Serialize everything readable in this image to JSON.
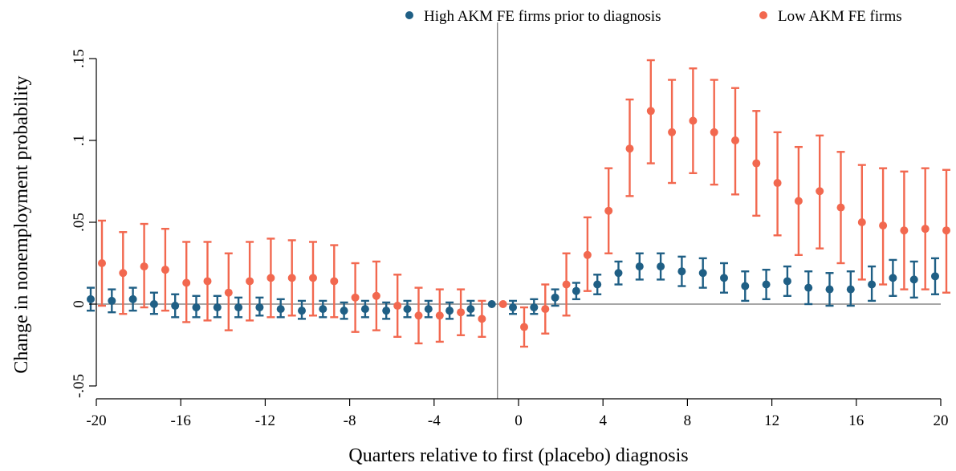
{
  "chart_data": {
    "type": "scatter",
    "subtype": "event-study-with-ci",
    "title": "",
    "xlabel": "Quarters relative to first (placebo) diagnosis",
    "ylabel": "Change in nonemployment probability",
    "xlim": [
      -20,
      20
    ],
    "ylim": [
      -0.05,
      0.15
    ],
    "xticks": [
      -20,
      -16,
      -12,
      -8,
      -4,
      0,
      4,
      8,
      12,
      16,
      20
    ],
    "xtick_labels": [
      "-20",
      "-16",
      "-12",
      "-8",
      "-4",
      "0",
      "4",
      "8",
      "12",
      "16",
      "20"
    ],
    "yticks": [
      -0.05,
      0,
      0.05,
      0.1,
      0.15
    ],
    "ytick_labels": [
      "-.05",
      "0",
      ".05",
      ".1",
      ".15"
    ],
    "grid": false,
    "reference_lines": {
      "y": 0,
      "x": -1
    },
    "legend_position": "top-right",
    "series": [
      {
        "name": "High AKM FE firms prior to diagnosis",
        "color": "#1f5f85",
        "x": [
          -20,
          -19,
          -18,
          -17,
          -16,
          -15,
          -14,
          -13,
          -12,
          -11,
          -10,
          -9,
          -8,
          -7,
          -6,
          -5,
          -4,
          -3,
          -2,
          -1,
          0,
          1,
          2,
          3,
          4,
          5,
          6,
          7,
          8,
          9,
          10,
          11,
          12,
          13,
          14,
          15,
          16,
          17,
          18,
          19,
          20
        ],
        "y": [
          0.003,
          0.002,
          0.003,
          0.0,
          -0.001,
          -0.002,
          -0.002,
          -0.002,
          -0.002,
          -0.003,
          -0.004,
          -0.003,
          -0.004,
          -0.003,
          -0.004,
          -0.003,
          -0.003,
          -0.004,
          -0.003,
          0.0,
          -0.002,
          -0.002,
          0.004,
          0.008,
          0.012,
          0.019,
          0.023,
          0.023,
          0.02,
          0.019,
          0.016,
          0.011,
          0.012,
          0.014,
          0.01,
          0.009,
          0.009,
          0.012,
          0.016,
          0.015,
          0.017
        ],
        "ci_low": [
          -0.004,
          -0.005,
          -0.004,
          -0.006,
          -0.008,
          -0.008,
          -0.008,
          -0.008,
          -0.007,
          -0.008,
          -0.009,
          -0.008,
          -0.009,
          -0.008,
          -0.009,
          -0.008,
          -0.008,
          -0.009,
          -0.007,
          0.0,
          -0.006,
          -0.006,
          -0.001,
          0.003,
          0.006,
          0.012,
          0.015,
          0.015,
          0.011,
          0.01,
          0.007,
          0.002,
          0.003,
          0.005,
          0.0,
          -0.001,
          -0.001,
          0.002,
          0.005,
          0.004,
          0.006
        ],
        "ci_high": [
          0.01,
          0.009,
          0.01,
          0.007,
          0.006,
          0.005,
          0.005,
          0.004,
          0.004,
          0.003,
          0.002,
          0.002,
          0.001,
          0.002,
          0.001,
          0.002,
          0.002,
          0.001,
          0.002,
          0.0,
          0.002,
          0.003,
          0.009,
          0.013,
          0.018,
          0.026,
          0.031,
          0.031,
          0.029,
          0.028,
          0.025,
          0.02,
          0.021,
          0.023,
          0.02,
          0.019,
          0.02,
          0.023,
          0.027,
          0.026,
          0.028
        ]
      },
      {
        "name": "Low AKM FE firms",
        "color": "#f2684f",
        "x": [
          -20,
          -19,
          -18,
          -17,
          -16,
          -15,
          -14,
          -13,
          -12,
          -11,
          -10,
          -9,
          -8,
          -7,
          -6,
          -5,
          -4,
          -3,
          -2,
          -1,
          0,
          1,
          2,
          3,
          4,
          5,
          6,
          7,
          8,
          9,
          10,
          11,
          12,
          13,
          14,
          15,
          16,
          17,
          18,
          19,
          20
        ],
        "y": [
          0.025,
          0.019,
          0.023,
          0.021,
          0.013,
          0.014,
          0.007,
          0.014,
          0.016,
          0.016,
          0.016,
          0.014,
          0.004,
          0.005,
          -0.001,
          -0.007,
          -0.007,
          -0.005,
          -0.009,
          0.0,
          -0.014,
          -0.003,
          0.012,
          0.03,
          0.057,
          0.095,
          0.118,
          0.105,
          0.112,
          0.105,
          0.1,
          0.086,
          0.074,
          0.063,
          0.069,
          0.059,
          0.05,
          0.048,
          0.045,
          0.046,
          0.045
        ],
        "ci_low": [
          -0.001,
          -0.006,
          -0.002,
          -0.004,
          -0.011,
          -0.01,
          -0.016,
          -0.01,
          -0.008,
          -0.007,
          -0.007,
          -0.008,
          -0.017,
          -0.016,
          -0.02,
          -0.024,
          -0.023,
          -0.019,
          -0.02,
          0.0,
          -0.026,
          -0.018,
          -0.007,
          0.008,
          0.031,
          0.066,
          0.086,
          0.074,
          0.08,
          0.073,
          0.067,
          0.054,
          0.042,
          0.03,
          0.034,
          0.025,
          0.015,
          0.012,
          0.009,
          0.009,
          0.007
        ],
        "ci_high": [
          0.051,
          0.044,
          0.049,
          0.046,
          0.038,
          0.038,
          0.031,
          0.038,
          0.04,
          0.039,
          0.038,
          0.036,
          0.025,
          0.026,
          0.018,
          0.01,
          0.009,
          0.009,
          0.002,
          0.0,
          -0.002,
          0.012,
          0.031,
          0.053,
          0.083,
          0.125,
          0.149,
          0.137,
          0.144,
          0.137,
          0.132,
          0.118,
          0.105,
          0.096,
          0.103,
          0.093,
          0.085,
          0.083,
          0.081,
          0.083,
          0.082
        ]
      }
    ]
  }
}
